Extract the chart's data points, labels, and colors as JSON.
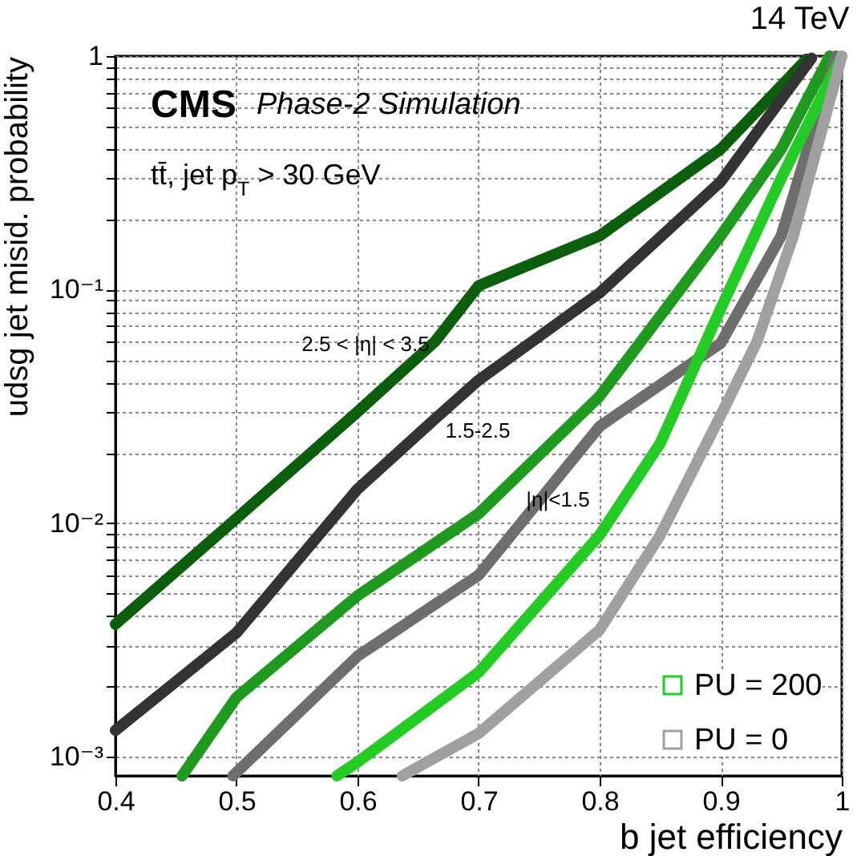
{
  "chart_data": {
    "type": "line",
    "title": "14 TeV",
    "xlabel": "b jet efficiency",
    "ylabel": "udsg jet misid. probability",
    "series": [
      {
        "color": "#0b5e0b",
        "x": [
          0.4,
          0.5,
          0.6,
          0.664,
          0.7,
          0.8,
          0.9,
          0.971
        ],
        "values": [
          0.0037,
          0.0105,
          0.03,
          0.06,
          0.104,
          0.17,
          0.4,
          0.97
        ]
      },
      {
        "color": "#333333",
        "x": [
          0.4,
          0.5,
          0.6,
          0.664,
          0.7,
          0.8,
          0.9,
          0.975
        ],
        "values": [
          0.0013,
          0.0034,
          0.014,
          0.028,
          0.041,
          0.097,
          0.29,
          0.98
        ]
      },
      {
        "color": "#1e9a1e",
        "x": [
          0.455,
          0.5,
          0.6,
          0.7,
          0.8,
          0.9,
          0.95,
          0.99
        ],
        "values": [
          0.00083,
          0.0018,
          0.0049,
          0.011,
          0.035,
          0.17,
          0.4,
          1
        ]
      },
      {
        "color": "#6e6e6e",
        "x": [
          0.497,
          0.6,
          0.7,
          0.8,
          0.9,
          0.95,
          0.995
        ],
        "values": [
          0.00083,
          0.0027,
          0.006,
          0.026,
          0.059,
          0.17,
          1
        ]
      },
      {
        "name": "PU = 200",
        "color": "#22cc22",
        "x": [
          0.583,
          0.6,
          0.7,
          0.8,
          0.85,
          0.9,
          0.95,
          1
        ],
        "values": [
          0.00083,
          0.00095,
          0.0023,
          0.0089,
          0.022,
          0.083,
          0.3,
          1
        ]
      },
      {
        "name": "PU = 0",
        "color": "#a0a0a0",
        "x": [
          0.637,
          0.7,
          0.8,
          0.85,
          0.9,
          0.93,
          0.96,
          1
        ],
        "values": [
          0.00083,
          0.00126,
          0.0035,
          0.0089,
          0.029,
          0.06,
          0.17,
          1
        ]
      }
    ],
    "xlim": [
      0.4,
      1
    ],
    "xticks": [
      0.4,
      0.5,
      0.6,
      0.7,
      0.8,
      0.9,
      1
    ],
    "ylim": [
      0.00083,
      1
    ],
    "yticks": [
      {
        "value": 0.001,
        "label": "10⁻³"
      },
      {
        "value": 0.002,
        "label": null
      },
      {
        "value": 0.003,
        "label": null
      },
      {
        "value": 0.004,
        "label": null
      },
      {
        "value": 0.005,
        "label": null
      },
      {
        "value": 0.006,
        "label": null
      },
      {
        "value": 0.007,
        "label": null
      },
      {
        "value": 0.008,
        "label": null
      },
      {
        "value": 0.009,
        "label": null
      },
      {
        "value": 0.01,
        "label": "10⁻²"
      },
      {
        "value": 0.02,
        "label": null
      },
      {
        "value": 0.03,
        "label": null
      },
      {
        "value": 0.04,
        "label": null
      },
      {
        "value": 0.05,
        "label": null
      },
      {
        "value": 0.06,
        "label": null
      },
      {
        "value": 0.07,
        "label": null
      },
      {
        "value": 0.08,
        "label": null
      },
      {
        "value": 0.09,
        "label": null
      },
      {
        "value": 0.1,
        "label": "10⁻¹"
      },
      {
        "value": 0.2,
        "label": null
      },
      {
        "value": 0.3,
        "label": null
      },
      {
        "value": 0.4,
        "label": null
      },
      {
        "value": 0.5,
        "label": null
      },
      {
        "value": 0.6,
        "label": null
      },
      {
        "value": 0.7,
        "label": null
      },
      {
        "value": 0.8,
        "label": null
      },
      {
        "value": 0.9,
        "label": null
      },
      1
    ],
    "log": true,
    "grid": true,
    "legend": "bottom right",
    "annotations": [
      "CMS",
      "Phase-2 Simulation",
      "tt̄, jet p$_{T}$ > 30 GeV",
      "2.5 < |η| < 3.5",
      "1.5-2.5",
      "|η|<1.5"
    ]
  }
}
